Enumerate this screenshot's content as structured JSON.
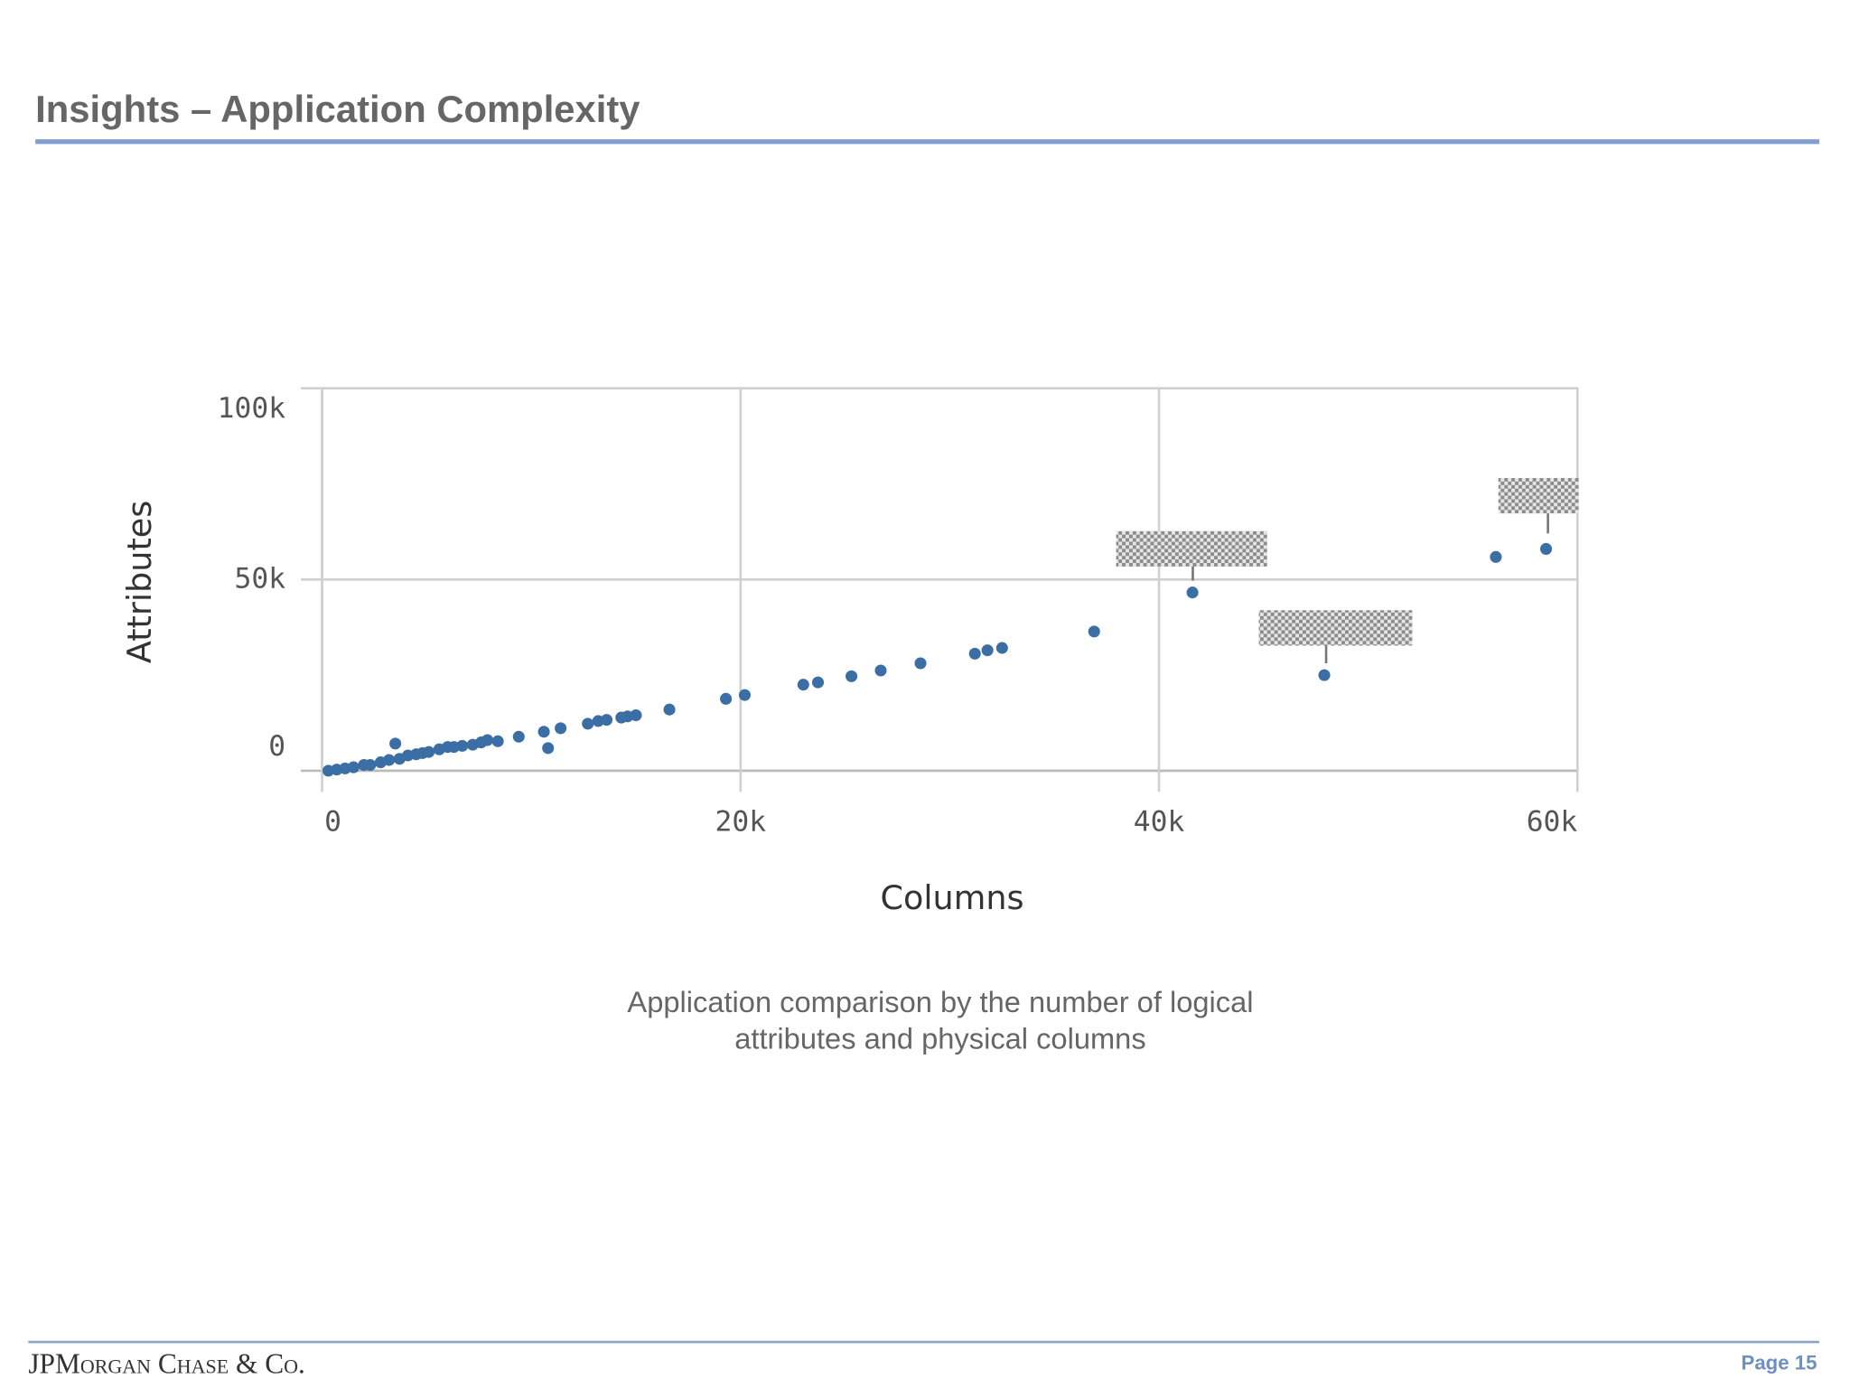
{
  "title": "Insights – Application Complexity",
  "caption": [
    "Application comparison by the number of logical",
    "attributes and physical columns"
  ],
  "footer": {
    "logo": "JPMorgan Chase & Co.",
    "page": "Page 15"
  },
  "chart_data": {
    "type": "scatter",
    "x_label": "Columns",
    "y_label": "Attributes",
    "color": "#3a6ea5",
    "xlim": [
      0,
      60000
    ],
    "ylim": [
      0,
      100000
    ],
    "xticks": [
      {
        "value": 0,
        "label": "0"
      },
      {
        "value": 20000,
        "label": "20k"
      },
      {
        "value": 40000,
        "label": "40k"
      },
      {
        "value": 60000,
        "label": "60k"
      }
    ],
    "yticks": [
      {
        "value": 0,
        "label": "0"
      },
      {
        "value": 50000,
        "label": "50k"
      },
      {
        "value": 100000,
        "label": "100k"
      }
    ],
    "grid": true,
    "x": [
      300,
      700,
      1100,
      1500,
      2000,
      2300,
      2800,
      3200,
      3500,
      3700,
      4100,
      4500,
      4800,
      5100,
      5600,
      6000,
      6300,
      6700,
      7200,
      7600,
      7900,
      8400,
      9400,
      10600,
      10800,
      11400,
      12700,
      13200,
      13600,
      14300,
      14600,
      15000,
      16600,
      19300,
      20200,
      23000,
      23700,
      25300,
      26700,
      28600,
      31200,
      31800,
      32500,
      36900,
      41600,
      47900,
      56100,
      58500
    ],
    "values": [
      0,
      300,
      600,
      900,
      1500,
      1500,
      2200,
      2800,
      7100,
      3100,
      4000,
      4300,
      4600,
      4900,
      5600,
      6200,
      6200,
      6500,
      6800,
      7400,
      8000,
      7700,
      8900,
      10200,
      5900,
      11100,
      12300,
      13000,
      13300,
      13900,
      14200,
      14500,
      16000,
      18800,
      19800,
      22500,
      23100,
      24700,
      26200,
      28100,
      30600,
      31500,
      32100,
      36400,
      46600,
      25000,
      55900,
      58000
    ]
  }
}
